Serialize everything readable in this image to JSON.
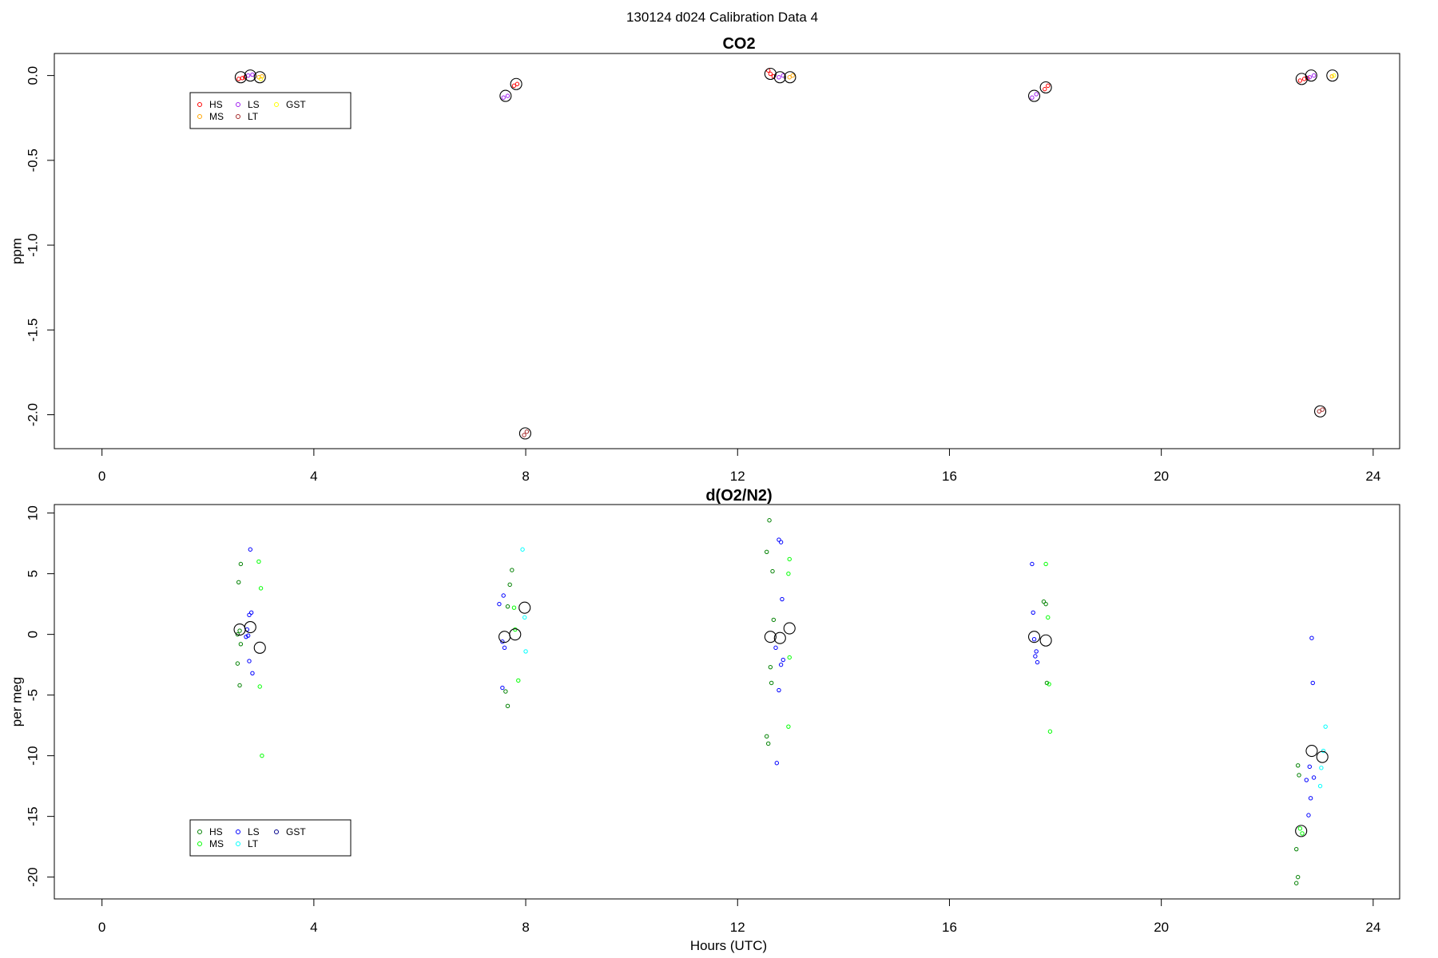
{
  "figure": {
    "suptitle": "130124   d024   Calibration Data 4"
  },
  "chart_data": [
    {
      "type": "scatter",
      "title": "CO2",
      "xlabel": "",
      "ylabel": "ppm",
      "xlim": [
        -0.9,
        24.5
      ],
      "ylim": [
        -2.2,
        0.13
      ],
      "xticks": [
        0,
        4,
        8,
        12,
        16,
        20,
        24
      ],
      "yticks": [
        0.0,
        -0.5,
        -1.0,
        -1.5,
        -2.0
      ],
      "ytick_labels": [
        "0.0",
        "-0.5",
        "-1.0",
        "-1.5",
        "-2.0"
      ],
      "grid": false,
      "legend": {
        "placement": "top-left",
        "entries": [
          {
            "name": "HS",
            "color": "#ff0000"
          },
          {
            "name": "MS",
            "color": "#ffa500"
          },
          {
            "name": "LS",
            "color": "#a020f0"
          },
          {
            "name": "LT",
            "color": "#a52a2a"
          },
          {
            "name": "GST",
            "color": "#ffff00"
          }
        ]
      },
      "series": [
        {
          "name": "HS",
          "color": "#ff0000",
          "points": [
            [
              2.58,
              -0.02
            ],
            [
              2.65,
              -0.015
            ],
            [
              2.7,
              -0.01
            ],
            [
              7.78,
              -0.06
            ],
            [
              7.84,
              -0.05
            ],
            [
              12.58,
              0.03
            ],
            [
              12.62,
              0.01
            ],
            [
              12.68,
              -0.005
            ],
            [
              17.8,
              -0.08
            ],
            [
              17.86,
              -0.06
            ],
            [
              22.62,
              -0.03
            ],
            [
              22.7,
              -0.02
            ],
            [
              22.76,
              -0.015
            ]
          ]
        },
        {
          "name": "MS",
          "color": "#ffa500",
          "points": [
            [
              2.96,
              -0.01
            ],
            [
              3.02,
              -0.005
            ],
            [
              12.98,
              -0.01
            ],
            [
              13.04,
              0.0
            ],
            [
              23.22,
              -0.005
            ]
          ]
        },
        {
          "name": "LS",
          "color": "#a020f0",
          "points": [
            [
              2.76,
              0.0
            ],
            [
              2.84,
              0.005
            ],
            [
              7.58,
              -0.13
            ],
            [
              7.66,
              -0.12
            ],
            [
              12.78,
              -0.01
            ],
            [
              12.86,
              0.0
            ],
            [
              17.56,
              -0.13
            ],
            [
              17.64,
              -0.11
            ],
            [
              22.8,
              -0.01
            ],
            [
              22.88,
              0.0
            ]
          ]
        },
        {
          "name": "LT",
          "color": "#a52a2a",
          "points": [
            [
              7.97,
              -2.12
            ],
            [
              8.02,
              -2.1
            ],
            [
              22.98,
              -1.98
            ],
            [
              23.04,
              -1.97
            ]
          ]
        },
        {
          "name": "GST",
          "color": "#ffff00",
          "points": [
            [
              3.0,
              -0.02
            ],
            [
              23.26,
              0.0
            ]
          ]
        },
        {
          "name": "",
          "color": "#000000",
          "size": "large",
          "points": [
            [
              2.62,
              -0.01
            ],
            [
              2.8,
              0.0
            ],
            [
              2.98,
              -0.01
            ],
            [
              7.62,
              -0.12
            ],
            [
              7.82,
              -0.05
            ],
            [
              7.99,
              -2.11
            ],
            [
              12.62,
              0.01
            ],
            [
              12.8,
              -0.01
            ],
            [
              12.99,
              -0.01
            ],
            [
              17.6,
              -0.12
            ],
            [
              17.82,
              -0.07
            ],
            [
              22.65,
              -0.02
            ],
            [
              22.83,
              0.0
            ],
            [
              23.0,
              -1.98
            ],
            [
              23.23,
              0.0
            ]
          ]
        }
      ]
    },
    {
      "type": "scatter",
      "title": "d(O2/N2)",
      "xlabel": "Hours (UTC)",
      "ylabel": "per meg",
      "xlim": [
        -0.9,
        24.5
      ],
      "ylim": [
        -21.8,
        10.7
      ],
      "xticks": [
        0,
        4,
        8,
        12,
        16,
        20,
        24
      ],
      "yticks": [
        10,
        5,
        0,
        -5,
        -10,
        -15,
        -20
      ],
      "ytick_labels": [
        "10",
        "5",
        "0",
        "-5",
        "-10",
        "-15",
        "-20"
      ],
      "grid": false,
      "legend": {
        "placement": "bottom-left",
        "entries": [
          {
            "name": "HS",
            "color": "#008000"
          },
          {
            "name": "MS",
            "color": "#00ff00"
          },
          {
            "name": "LS",
            "color": "#0000ff"
          },
          {
            "name": "LT",
            "color": "#00ffff"
          },
          {
            "name": "GST",
            "color": "#00008b"
          }
        ]
      },
      "series": [
        {
          "name": "HS",
          "color": "#008000",
          "points": [
            [
              2.62,
              5.8
            ],
            [
              2.58,
              4.3
            ],
            [
              2.6,
              0.3
            ],
            [
              2.56,
              0.0
            ],
            [
              2.62,
              -0.8
            ],
            [
              2.56,
              -2.4
            ],
            [
              2.6,
              -4.2
            ],
            [
              7.74,
              5.3
            ],
            [
              7.7,
              4.1
            ],
            [
              7.66,
              2.3
            ],
            [
              7.62,
              -4.7
            ],
            [
              7.66,
              -5.9
            ],
            [
              12.6,
              9.4
            ],
            [
              12.55,
              6.8
            ],
            [
              12.66,
              5.2
            ],
            [
              12.68,
              1.2
            ],
            [
              12.62,
              -2.7
            ],
            [
              12.64,
              -4.0
            ],
            [
              12.55,
              -8.4
            ],
            [
              12.58,
              -9.0
            ],
            [
              17.78,
              2.7
            ],
            [
              17.82,
              2.5
            ],
            [
              17.84,
              -4.0
            ],
            [
              22.58,
              -10.8
            ],
            [
              22.6,
              -11.6
            ],
            [
              22.55,
              -17.7
            ],
            [
              22.58,
              -20.0
            ],
            [
              22.55,
              -20.5
            ]
          ]
        },
        {
          "name": "MS",
          "color": "#00ff00",
          "points": [
            [
              2.96,
              6.0
            ],
            [
              3.0,
              3.8
            ],
            [
              2.98,
              -4.3
            ],
            [
              3.02,
              -10.0
            ],
            [
              7.78,
              2.2
            ],
            [
              7.8,
              0.4
            ],
            [
              7.86,
              -3.8
            ],
            [
              12.98,
              6.2
            ],
            [
              12.96,
              5.0
            ],
            [
              12.98,
              -1.9
            ],
            [
              12.96,
              -7.6
            ],
            [
              17.82,
              5.8
            ],
            [
              17.86,
              1.4
            ],
            [
              17.88,
              -4.1
            ],
            [
              17.9,
              -8.0
            ],
            [
              22.62,
              -16.0
            ],
            [
              22.66,
              -16.4
            ]
          ]
        },
        {
          "name": "LS",
          "color": "#0000ff",
          "points": [
            [
              2.8,
              7.0
            ],
            [
              2.82,
              1.8
            ],
            [
              2.78,
              1.6
            ],
            [
              2.74,
              0.4
            ],
            [
              2.76,
              -0.1
            ],
            [
              2.72,
              -0.2
            ],
            [
              2.78,
              -2.2
            ],
            [
              2.84,
              -3.2
            ],
            [
              7.5,
              2.5
            ],
            [
              7.58,
              3.2
            ],
            [
              7.56,
              -0.6
            ],
            [
              7.6,
              -1.1
            ],
            [
              7.56,
              -4.4
            ],
            [
              12.78,
              7.8
            ],
            [
              12.82,
              7.6
            ],
            [
              12.84,
              2.9
            ],
            [
              12.72,
              -1.1
            ],
            [
              12.86,
              -2.1
            ],
            [
              12.82,
              -2.5
            ],
            [
              12.78,
              -4.6
            ],
            [
              12.74,
              -10.6
            ],
            [
              17.56,
              5.8
            ],
            [
              17.58,
              1.8
            ],
            [
              17.6,
              -0.4
            ],
            [
              17.64,
              -1.4
            ],
            [
              17.62,
              -1.8
            ],
            [
              17.66,
              -2.3
            ],
            [
              22.8,
              -10.9
            ],
            [
              22.88,
              -11.8
            ],
            [
              22.74,
              -12.0
            ],
            [
              22.82,
              -13.5
            ],
            [
              22.78,
              -14.9
            ],
            [
              22.84,
              -0.3
            ],
            [
              22.86,
              -4.0
            ]
          ]
        },
        {
          "name": "LT",
          "color": "#00ffff",
          "points": [
            [
              7.94,
              7.0
            ],
            [
              7.98,
              1.4
            ],
            [
              8.0,
              -1.4
            ],
            [
              23.1,
              -7.6
            ],
            [
              23.06,
              -9.6
            ],
            [
              23.02,
              -11.0
            ],
            [
              23.0,
              -12.5
            ]
          ]
        },
        {
          "name": "",
          "color": "#000000",
          "size": "large",
          "points": [
            [
              2.6,
              0.4
            ],
            [
              2.8,
              0.6
            ],
            [
              2.98,
              -1.1
            ],
            [
              7.6,
              -0.2
            ],
            [
              7.8,
              0.0
            ],
            [
              7.98,
              2.2
            ],
            [
              12.62,
              -0.2
            ],
            [
              12.8,
              -0.3
            ],
            [
              12.98,
              0.5
            ],
            [
              17.6,
              -0.2
            ],
            [
              17.82,
              -0.5
            ],
            [
              22.64,
              -16.2
            ],
            [
              22.84,
              -9.6
            ],
            [
              23.04,
              -10.1
            ]
          ]
        }
      ]
    }
  ]
}
